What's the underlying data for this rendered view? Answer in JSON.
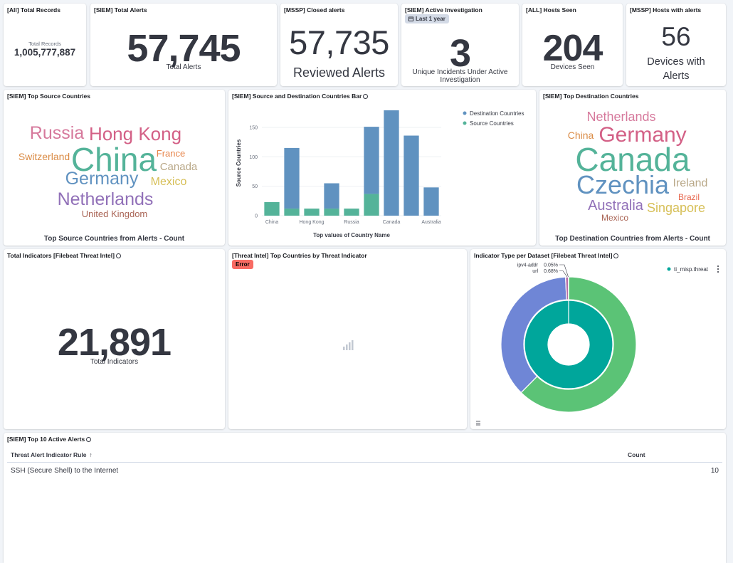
{
  "panels": {
    "total_records": {
      "title": "[All] Total Records",
      "label": "Total Records",
      "value": "1,005,777,887"
    },
    "total_alerts": {
      "title": "[SIEM] Total Alerts",
      "value": "57,745",
      "label": "Total Alerts"
    },
    "closed_alerts": {
      "title": "[MSSP] Closed alerts",
      "value": "57,735",
      "label": "Reviewed Alerts"
    },
    "active_investigation": {
      "title": "[SIEM] Active Investigation",
      "badge": "Last 1 year",
      "value": "3",
      "label": "Unique Incidents Under Active Investigation"
    },
    "hosts_seen": {
      "title": "[ALL] Hosts Seen",
      "value": "204",
      "label": "Devices Seen"
    },
    "hosts_with_alerts": {
      "title": "[MSSP] Hosts with alerts",
      "value": "56",
      "label": "Devices with Alerts"
    },
    "total_indicators": {
      "title": "Total Indicators [Filebeat Threat Intel]",
      "value": "21,891",
      "label": "Total Indicators"
    },
    "threat_countries": {
      "title": "[Threat Intel] Top Countries by Threat Indicator",
      "badge": "Error"
    }
  },
  "source_cloud": {
    "title": "[SIEM] Top Source Countries",
    "caption": "Top Source Countries from Alerts - Count",
    "words": [
      {
        "text": "Russia",
        "color": "#d6799c"
      },
      {
        "text": "Hong Kong",
        "color": "#d36086"
      },
      {
        "text": "Switzerland",
        "color": "#da8b45"
      },
      {
        "text": "China",
        "color": "#54b399"
      },
      {
        "text": "France",
        "color": "#e7864c"
      },
      {
        "text": "Canada",
        "color": "#b9a888"
      },
      {
        "text": "Germany",
        "color": "#6092c0"
      },
      {
        "text": "Mexico",
        "color": "#d6bf57"
      },
      {
        "text": "Netherlands",
        "color": "#9170b8"
      },
      {
        "text": "United Kingdom",
        "color": "#aa6556"
      }
    ]
  },
  "dest_cloud": {
    "title": "[SIEM] Top Destination Countries",
    "caption": "Top Destination Countries from Alerts - Count",
    "words": [
      {
        "text": "Netherlands",
        "color": "#d6799c"
      },
      {
        "text": "China",
        "color": "#da8b45"
      },
      {
        "text": "Germany",
        "color": "#d36086"
      },
      {
        "text": "Canada",
        "color": "#54b399"
      },
      {
        "text": "Czechia",
        "color": "#6092c0"
      },
      {
        "text": "Ireland",
        "color": "#b9a888"
      },
      {
        "text": "Brazil",
        "color": "#e7664c"
      },
      {
        "text": "Australia",
        "color": "#9170b8"
      },
      {
        "text": "Singapore",
        "color": "#d6bf57"
      },
      {
        "text": "Mexico",
        "color": "#aa6556"
      }
    ]
  },
  "bar_chart": {
    "type": "bar",
    "title": "[SIEM] Source and Destination Countries Bar",
    "categories": [
      "China",
      null,
      "Hong Kong",
      null,
      "Russia",
      null,
      "Canada",
      null,
      "Australia"
    ],
    "series": [
      {
        "name": "Destination Countries",
        "color": "#6092c0",
        "values": [
          0,
          103,
          0,
          43,
          0,
          114,
          179,
          136,
          48
        ]
      },
      {
        "name": "Source Countries",
        "color": "#54b399",
        "values": [
          23,
          12,
          12,
          12,
          12,
          37,
          0,
          0,
          0
        ]
      }
    ],
    "ylim": [
      0,
      185
    ],
    "yticks": [
      0,
      50,
      100,
      150
    ],
    "ylabel": "Source Countries",
    "xlabel": "Top values of Country Name",
    "stacked": true,
    "grid": true
  },
  "donut": {
    "type": "pie",
    "title": "Indicator Type per Dataset [Filebeat Threat Intel]",
    "inner": {
      "name": "ti_misp.threat",
      "color": "#00a69b",
      "values": [
        100
      ]
    },
    "outer": {
      "labels": [
        null,
        null,
        "url",
        "ipv4-addr"
      ],
      "values": [
        62.4,
        36.87,
        0.68,
        0.05
      ],
      "value_labels": [
        null,
        null,
        "0.68%",
        "0.05%"
      ],
      "colors": [
        "#5bc376",
        "#6f86d6",
        "#b56fa8",
        "#7a55b0"
      ]
    }
  },
  "table": {
    "title": "[SIEM] Top 10 Active Alerts",
    "columns": [
      "Threat Alert Indicator Rule",
      "Count"
    ],
    "rows": [
      [
        "SSH (Secure Shell) to the Internet",
        "10"
      ]
    ]
  }
}
